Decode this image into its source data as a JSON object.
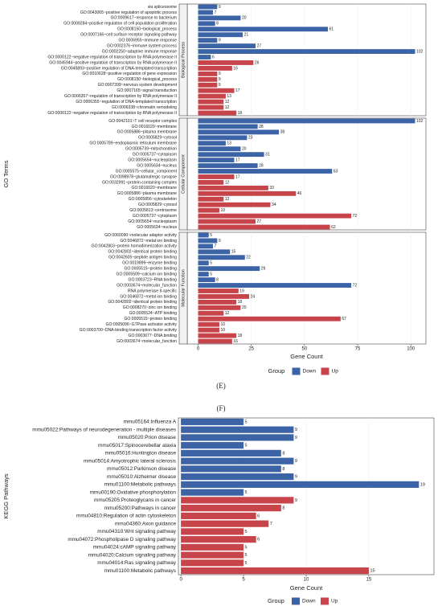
{
  "chart_data": [
    {
      "type": "bar",
      "orientation": "horizontal",
      "y_label": "GO Terms",
      "x_label": "Gene Count",
      "xlim": [
        -5.1,
        107.1
      ],
      "xticks": [
        0,
        25,
        50,
        75,
        100
      ],
      "legend_title": "Group",
      "caption": "(E)",
      "series": [
        {
          "name": "Down",
          "color": "#3b63a6"
        },
        {
          "name": "Up",
          "color": "#c8444b"
        }
      ],
      "panels": [
        {
          "label": "Biological Process",
          "categories": [
            "via spliceosome",
            "GO:0043065~positive regulation of apoptotic process",
            "GO:0009617~response to bacterium",
            "GO:0008284~positive regulation of cell population proliferation",
            "GO:0008150~biological_process",
            "GO:0007166~cell surface receptor signaling pathway",
            "GO:0006955~immune response",
            "GO:0002376~immune system process",
            "GO:0002250~adaptive immune response",
            "GO:0000122~negative regulation of transcription by RNA polymerase II",
            "GO:0045944~positive regulation of transcription by RNA polymerase II",
            "GO:0045893~positive regulation of DNA-templated transcription",
            "GO:0010628~positive regulation of gene expression",
            "GO:0008150~biological_process",
            "GO:0007399~nervous system development",
            "GO:0007165~signal transduction",
            "GO:0006357~regulation of transcription by RNA polymerase II",
            "GO:0006355~regulation of DNA-templated transcription",
            "GO:0006338~chromatin remodeling",
            "GO:0000122~negative regulation of transcription by RNA polymerase II"
          ],
          "series": [
            {
              "values": [
                9,
                7,
                20,
                8,
                61,
                21,
                9,
                27,
                102,
                6,
                null,
                null,
                null,
                null,
                null,
                null,
                null,
                null,
                null,
                null
              ]
            },
            {
              "values": [
                null,
                null,
                null,
                null,
                null,
                null,
                null,
                null,
                null,
                null,
                26,
                16,
                9,
                9,
                9,
                17,
                13,
                12,
                12,
                18
              ]
            }
          ]
        },
        {
          "label": "Cellular Component",
          "categories": [
            "GO:0042101~T cell receptor complex",
            "GO:0016020~membrane",
            "GO:0005886~plasma membrane",
            "GO:0005829~cytosol",
            "GO:0005789~endoplasmic reticulum membrane",
            "GO:0005739~mitochondrion",
            "GO:0005737~cytoplasm",
            "GO:0005654~nucleoplasm",
            "GO:0005634~nucleus",
            "GO:0005575~cellular_component",
            "GO:0098978~glutamatergic synapse",
            "GO:0032991~protein-containing complex",
            "GO:0016020~membrane",
            "GO:0005886~plasma membrane",
            "GO:0005856~cytoskeleton",
            "GO:0005829~cytosol",
            "GO:0005813~centrosome",
            "GO:0005737~cytoplasm",
            "GO:0005654~nucleoplasm",
            "GO:0005634~nucleus"
          ],
          "series": [
            {
              "values": [
                102,
                28,
                38,
                23,
                13,
                20,
                31,
                17,
                28,
                63,
                null,
                null,
                null,
                null,
                null,
                null,
                null,
                null,
                null,
                null
              ]
            },
            {
              "values": [
                null,
                null,
                null,
                null,
                null,
                null,
                null,
                null,
                null,
                null,
                17,
                12,
                33,
                46,
                12,
                34,
                10,
                72,
                27,
                62
              ]
            }
          ]
        },
        {
          "label": "Molecular Function",
          "categories": [
            "GO:0060090~molecular adaptor activity",
            "GO:0046872~metal ion binding",
            "GO:0042803~protein homodimerization activity",
            "GO:0042802~identical protein binding",
            "GO:0042605~peptide antigen binding",
            "GO:0019899~enzyme binding",
            "GO:0005515~protein binding",
            "GO:0005509~calcium ion binding",
            "GO:0003723~RNA binding",
            "GO:0003674~molecular_function",
            "RNA polymerase II-specific",
            "GO:0046872~metal ion binding",
            "GO:0042802~identical protein binding",
            "GO:0008270~zinc ion binding",
            "GO:0005524~ATP binding",
            "GO:0005515~protein binding",
            "GO:0005096~GTPase activator activity",
            "GO:0003700~DNA-binding transcription factor activity",
            "GO:0003677~DNA binding",
            "GO:0003674~molecular_function"
          ],
          "series": [
            {
              "values": [
                5,
                9,
                7,
                15,
                22,
                5,
                29,
                5,
                8,
                72,
                null,
                null,
                null,
                null,
                null,
                null,
                null,
                null,
                null,
                null
              ]
            },
            {
              "values": [
                null,
                null,
                null,
                null,
                null,
                null,
                null,
                null,
                null,
                null,
                19,
                24,
                18,
                20,
                12,
                67,
                10,
                10,
                18,
                16
              ]
            }
          ]
        }
      ]
    },
    {
      "type": "bar",
      "orientation": "horizontal",
      "y_label": "KEGG Pathways",
      "x_label": "Gene Count",
      "xlim": [
        -0.2,
        20.2
      ],
      "xticks": [
        0,
        5,
        10,
        15
      ],
      "legend_title": "Group",
      "caption": "(F)",
      "categories": [
        "mmu05164:Influenza A",
        "mmu05022:Pathways of neurodegeneration - multiple diseases",
        "mmu05020:Prion disease",
        "mmu05017:Spinocerebellar ataxia",
        "mmu05016:Huntington disease",
        "mmu05014:Amyotrophic lateral sclerosis",
        "mmu05012:Parkinson disease",
        "mmu05010:Alzheimer disease",
        "mmu01100:Metabolic pathways",
        "mmu00190:Oxidative phosphorylation",
        "mmu05205:Proteoglycans in cancer",
        "mmu05200:Pathways in cancer",
        "mmu04810:Regulation of actin cytoskeleton",
        "mmu04360:Axon guidance",
        "mmu04310:Wnt signaling pathway",
        "mmu04072:Phospholipase D signaling pathway",
        "mmu04024:cAMP signaling pathway",
        "mmu04020:Calcium signaling pathway",
        "mmu04014:Ras signaling pathway",
        "mmu01100:Metabolic pathways"
      ],
      "series": [
        {
          "name": "Down",
          "color": "#3b63a6",
          "values": [
            5,
            9,
            9,
            5,
            8,
            9,
            8,
            9,
            19,
            5,
            null,
            null,
            null,
            null,
            null,
            null,
            null,
            null,
            null,
            null
          ]
        },
        {
          "name": "Up",
          "color": "#c8444b",
          "values": [
            null,
            null,
            null,
            null,
            null,
            null,
            null,
            null,
            null,
            null,
            9,
            8,
            6,
            7,
            5,
            6,
            5,
            5,
            5,
            15
          ]
        }
      ]
    }
  ]
}
